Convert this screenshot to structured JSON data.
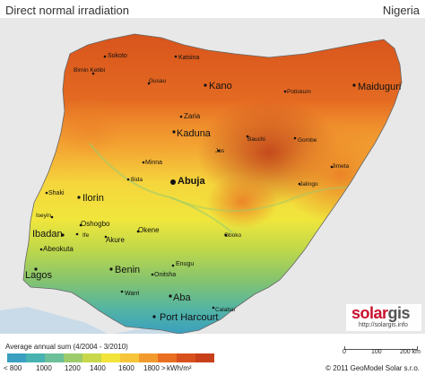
{
  "header": {
    "title": "Direct normal irradiation",
    "country": "Nigeria"
  },
  "legend": {
    "caption": "Average annual sum (4/2004 - 3/2010)",
    "colors": [
      "#3a9fc0",
      "#47b2b0",
      "#6cc09a",
      "#9ccc6c",
      "#c8d84a",
      "#f2e43a",
      "#f6c53a",
      "#f29a2e",
      "#e96e22",
      "#d8501c",
      "#c8401a"
    ],
    "ticks": [
      "< 800",
      "1000",
      "1200",
      "1400",
      "1600",
      "1800 >"
    ],
    "unit": "kWh/m²"
  },
  "scale": {
    "labels": [
      "0",
      "100",
      "200 km"
    ]
  },
  "copyright": "© 2011 GeoModel Solar s.r.o.",
  "logo": {
    "brand_a": "solar",
    "brand_b": "gis",
    "url": "http://solargis.info"
  },
  "cities": {
    "sokoto": "Sokoto",
    "katsina": "Katsina",
    "birnin_kebbi": "Birnin Kebbi",
    "gusau": "Gusau",
    "kano": "Kano",
    "maiduguri": "Maiduguri",
    "potiskum": "Potiskum",
    "zaria": "Zaria",
    "kaduna": "Kaduna",
    "bauchi": "Bauchi",
    "gombe": "Gombe",
    "jos": "Jos",
    "minna": "Minna",
    "bida": "Bida",
    "abuja": "Abuja",
    "jimeta": "Jimeta",
    "jalingo": "Jalingo",
    "shaki": "Shaki",
    "ilorin": "Ilorin",
    "iseyin": "Iseyin",
    "oshogbo": "Oshogbo",
    "ibadan": "Ibadan",
    "ife": "Ife",
    "abeokuta": "Abeokuta",
    "akure": "Akure",
    "okene": "Okene",
    "gboko": "Gboko",
    "lagos": "Lagos",
    "benin": "Benin",
    "onitsha": "Onitsha",
    "enugu": "Enugu",
    "warri": "Warri",
    "aba": "Aba",
    "port_harcourt": "Port Harcourt",
    "calabar": "Calabar"
  }
}
